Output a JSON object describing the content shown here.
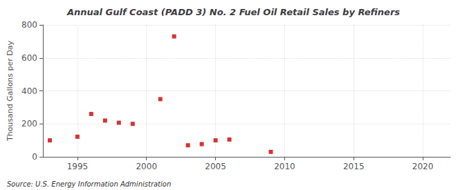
{
  "chart_data": {
    "type": "scatter",
    "title": "Annual Gulf Coast (PADD 3) No. 2 Fuel Oil Retail Sales by Refiners",
    "ylabel": "Thousand Gallons per Day",
    "annotations": [
      "Source: U.S. Energy Information Administration"
    ],
    "x": [
      1993,
      1995,
      1996,
      1997,
      1998,
      1999,
      2001,
      2002,
      2003,
      2004,
      2005,
      2006,
      2009
    ],
    "values": [
      100,
      122,
      260,
      220,
      207,
      200,
      350,
      730,
      70,
      77,
      100,
      105,
      30
    ],
    "color": "#cc0000",
    "marker": "square",
    "xlim": [
      1992.5,
      2022
    ],
    "ylim": [
      0,
      800
    ],
    "xticks": [
      1995,
      2000,
      2005,
      2010,
      2015,
      2020
    ],
    "yticks": [
      0,
      200,
      400,
      600,
      800
    ],
    "grid": true
  }
}
